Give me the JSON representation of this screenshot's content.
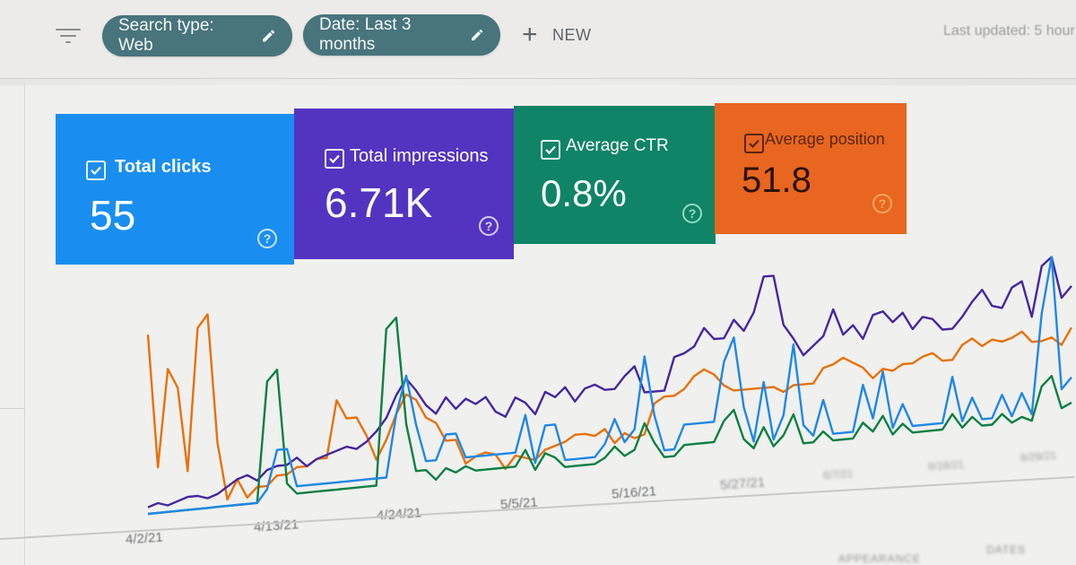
{
  "filter_bar": {
    "filter_icon": "filter-icon",
    "chips": [
      {
        "label": "Search type: Web",
        "icon": "pencil-icon"
      },
      {
        "label": "Date: Last 3 months",
        "icon": "pencil-icon"
      }
    ],
    "new_button": {
      "icon": "plus-icon",
      "label": "NEW"
    },
    "last_updated": "Last updated: 5 hour"
  },
  "metrics": [
    {
      "label": "Total clicks",
      "value": "55",
      "checked": true,
      "color": "#1a8ef0"
    },
    {
      "label": "Total impressions",
      "value": "6.71K",
      "checked": true,
      "color": "#5234c1"
    },
    {
      "label": "Average CTR",
      "value": "0.8%",
      "checked": true,
      "color": "#0f8466"
    },
    {
      "label": "Average position",
      "value": "51.8",
      "checked": true,
      "color": "#e8661f"
    }
  ],
  "chart_data": {
    "type": "line",
    "title": "",
    "xlabel": "",
    "ylabel": "",
    "x_ticks": [
      "4/2/21",
      "4/13/21",
      "4/24/21",
      "5/5/21",
      "5/16/21",
      "5/27/21",
      "6/7/21",
      "6/18/21",
      "6/29/21"
    ],
    "legend": [],
    "grid": false,
    "series": [
      {
        "name": "Total clicks",
        "color": "#1e88e5",
        "values": [
          0,
          0,
          0,
          0,
          0,
          0,
          0,
          0,
          0,
          0,
          0,
          0,
          1,
          4,
          4,
          1,
          1,
          1,
          1,
          1,
          1,
          1,
          1,
          1,
          1,
          6,
          9,
          5,
          2,
          2,
          4,
          4,
          2,
          2,
          2,
          2,
          2,
          2,
          5,
          1,
          4,
          4,
          1,
          1,
          1,
          1,
          2,
          4,
          2,
          3,
          9,
          4,
          1,
          1,
          3,
          3,
          3,
          3,
          8,
          10,
          4,
          1,
          6,
          1,
          3,
          9,
          2,
          1,
          4,
          1,
          1,
          1,
          5,
          2,
          6,
          1,
          3,
          1,
          1,
          1,
          1,
          5,
          1,
          3,
          1,
          1,
          3,
          1,
          3,
          1,
          10,
          15,
          3,
          4
        ]
      },
      {
        "name": "Total impressions",
        "color": "#4527a0",
        "values": [
          2,
          3,
          2,
          3,
          4,
          4,
          3,
          4,
          6,
          8,
          9,
          7,
          10,
          11,
          11,
          13,
          10,
          12,
          13,
          14,
          15,
          14,
          16,
          19,
          23,
          30,
          35,
          31,
          26,
          23,
          28,
          24,
          27,
          25,
          27,
          22,
          20,
          26,
          24,
          20,
          27,
          25,
          28,
          23,
          27,
          28,
          26,
          26,
          30,
          33,
          24,
          24,
          24,
          35,
          36,
          38,
          44,
          40,
          40,
          46,
          42,
          48,
          60,
          60,
          43,
          38,
          32,
          35,
          38,
          47,
          38,
          41,
          36,
          44,
          45,
          41,
          44,
          38,
          42,
          41,
          37,
          37,
          41,
          46,
          50,
          44,
          43,
          50,
          52,
          39,
          57,
          60,
          45,
          49
        ]
      },
      {
        "name": "Average CTR",
        "color": "#0b8043",
        "values": [
          0,
          0,
          0,
          0,
          0,
          0,
          0,
          0,
          0,
          0,
          0,
          0,
          22,
          24,
          3,
          1,
          1,
          1,
          1,
          1,
          1,
          1,
          1,
          1,
          30,
          32,
          12,
          3,
          3,
          1,
          3,
          2,
          3,
          2,
          2,
          2,
          2,
          2,
          5,
          1,
          4,
          3,
          1,
          1,
          1,
          1,
          2,
          4,
          2,
          3,
          8,
          4,
          1,
          1,
          3,
          3,
          3,
          3,
          7,
          9,
          3,
          1,
          5,
          1,
          3,
          7,
          1,
          1,
          3,
          1,
          1,
          1,
          4,
          2,
          5,
          1,
          3,
          1,
          1,
          1,
          1,
          4,
          1,
          3,
          1,
          1,
          3,
          1,
          2,
          1,
          8,
          10,
          3,
          4
        ]
      },
      {
        "name": "Average position",
        "color": "#e8710a",
        "values": [
          55,
          14,
          44,
          38,
          12,
          56,
          60,
          20,
          2,
          8,
          2,
          5,
          5,
          8,
          8,
          10,
          10,
          12,
          12,
          30,
          24,
          24,
          18,
          10,
          16,
          24,
          30,
          28,
          22,
          20,
          14,
          14,
          6,
          8,
          9,
          8,
          3,
          7,
          6,
          5,
          8,
          9,
          10,
          12,
          12,
          11,
          13,
          8,
          11,
          9,
          10,
          20,
          22,
          22,
          24,
          28,
          30,
          28,
          24,
          22,
          22,
          22,
          22,
          22,
          20,
          22,
          22,
          22,
          27,
          28,
          30,
          28,
          26,
          22,
          25,
          24,
          26,
          26,
          28,
          29,
          26,
          26,
          31,
          33,
          30,
          32,
          31,
          32,
          34,
          30,
          30,
          31,
          28,
          34
        ]
      }
    ]
  },
  "table_header": {
    "columns": [
      "APPEARANCE",
      "DATES"
    ]
  }
}
